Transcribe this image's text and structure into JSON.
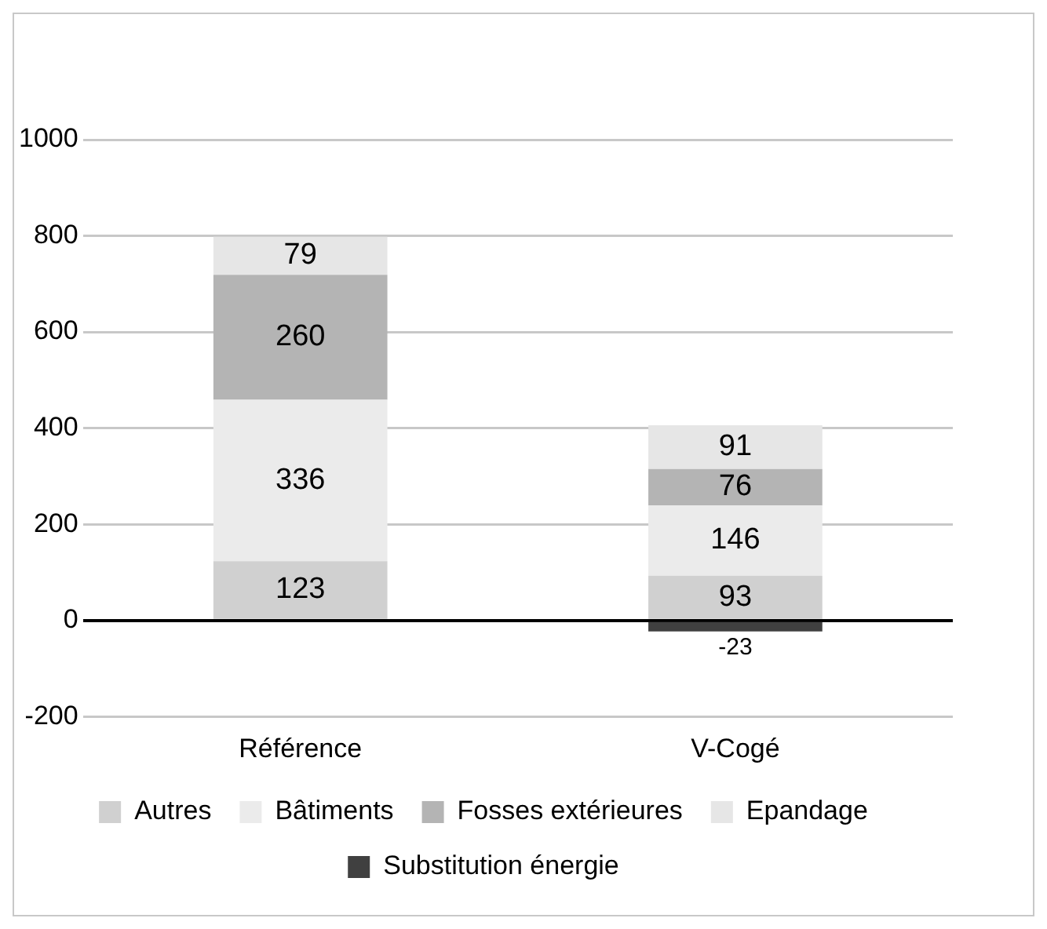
{
  "chart_data": {
    "type": "bar",
    "stacked": true,
    "categories": [
      "Référence",
      "V-Cogé"
    ],
    "series": [
      {
        "name": "Autres",
        "color": "#d0d0d0",
        "values": [
          123,
          93
        ]
      },
      {
        "name": "Bâtiments",
        "color": "#ebebeb",
        "values": [
          336,
          146
        ]
      },
      {
        "name": "Fosses extérieures",
        "color": "#b4b4b4",
        "values": [
          260,
          76
        ]
      },
      {
        "name": "Epandage",
        "color": "#e6e6e6",
        "values": [
          79,
          91
        ]
      },
      {
        "name": "Substitution énergie",
        "color": "#404040",
        "values": [
          null,
          -23
        ]
      }
    ],
    "ylim": [
      -200,
      1000
    ],
    "yticks": [
      -200,
      0,
      200,
      400,
      600,
      800,
      1000
    ],
    "grid": "y",
    "legend": "bottom",
    "data_labels": true
  }
}
